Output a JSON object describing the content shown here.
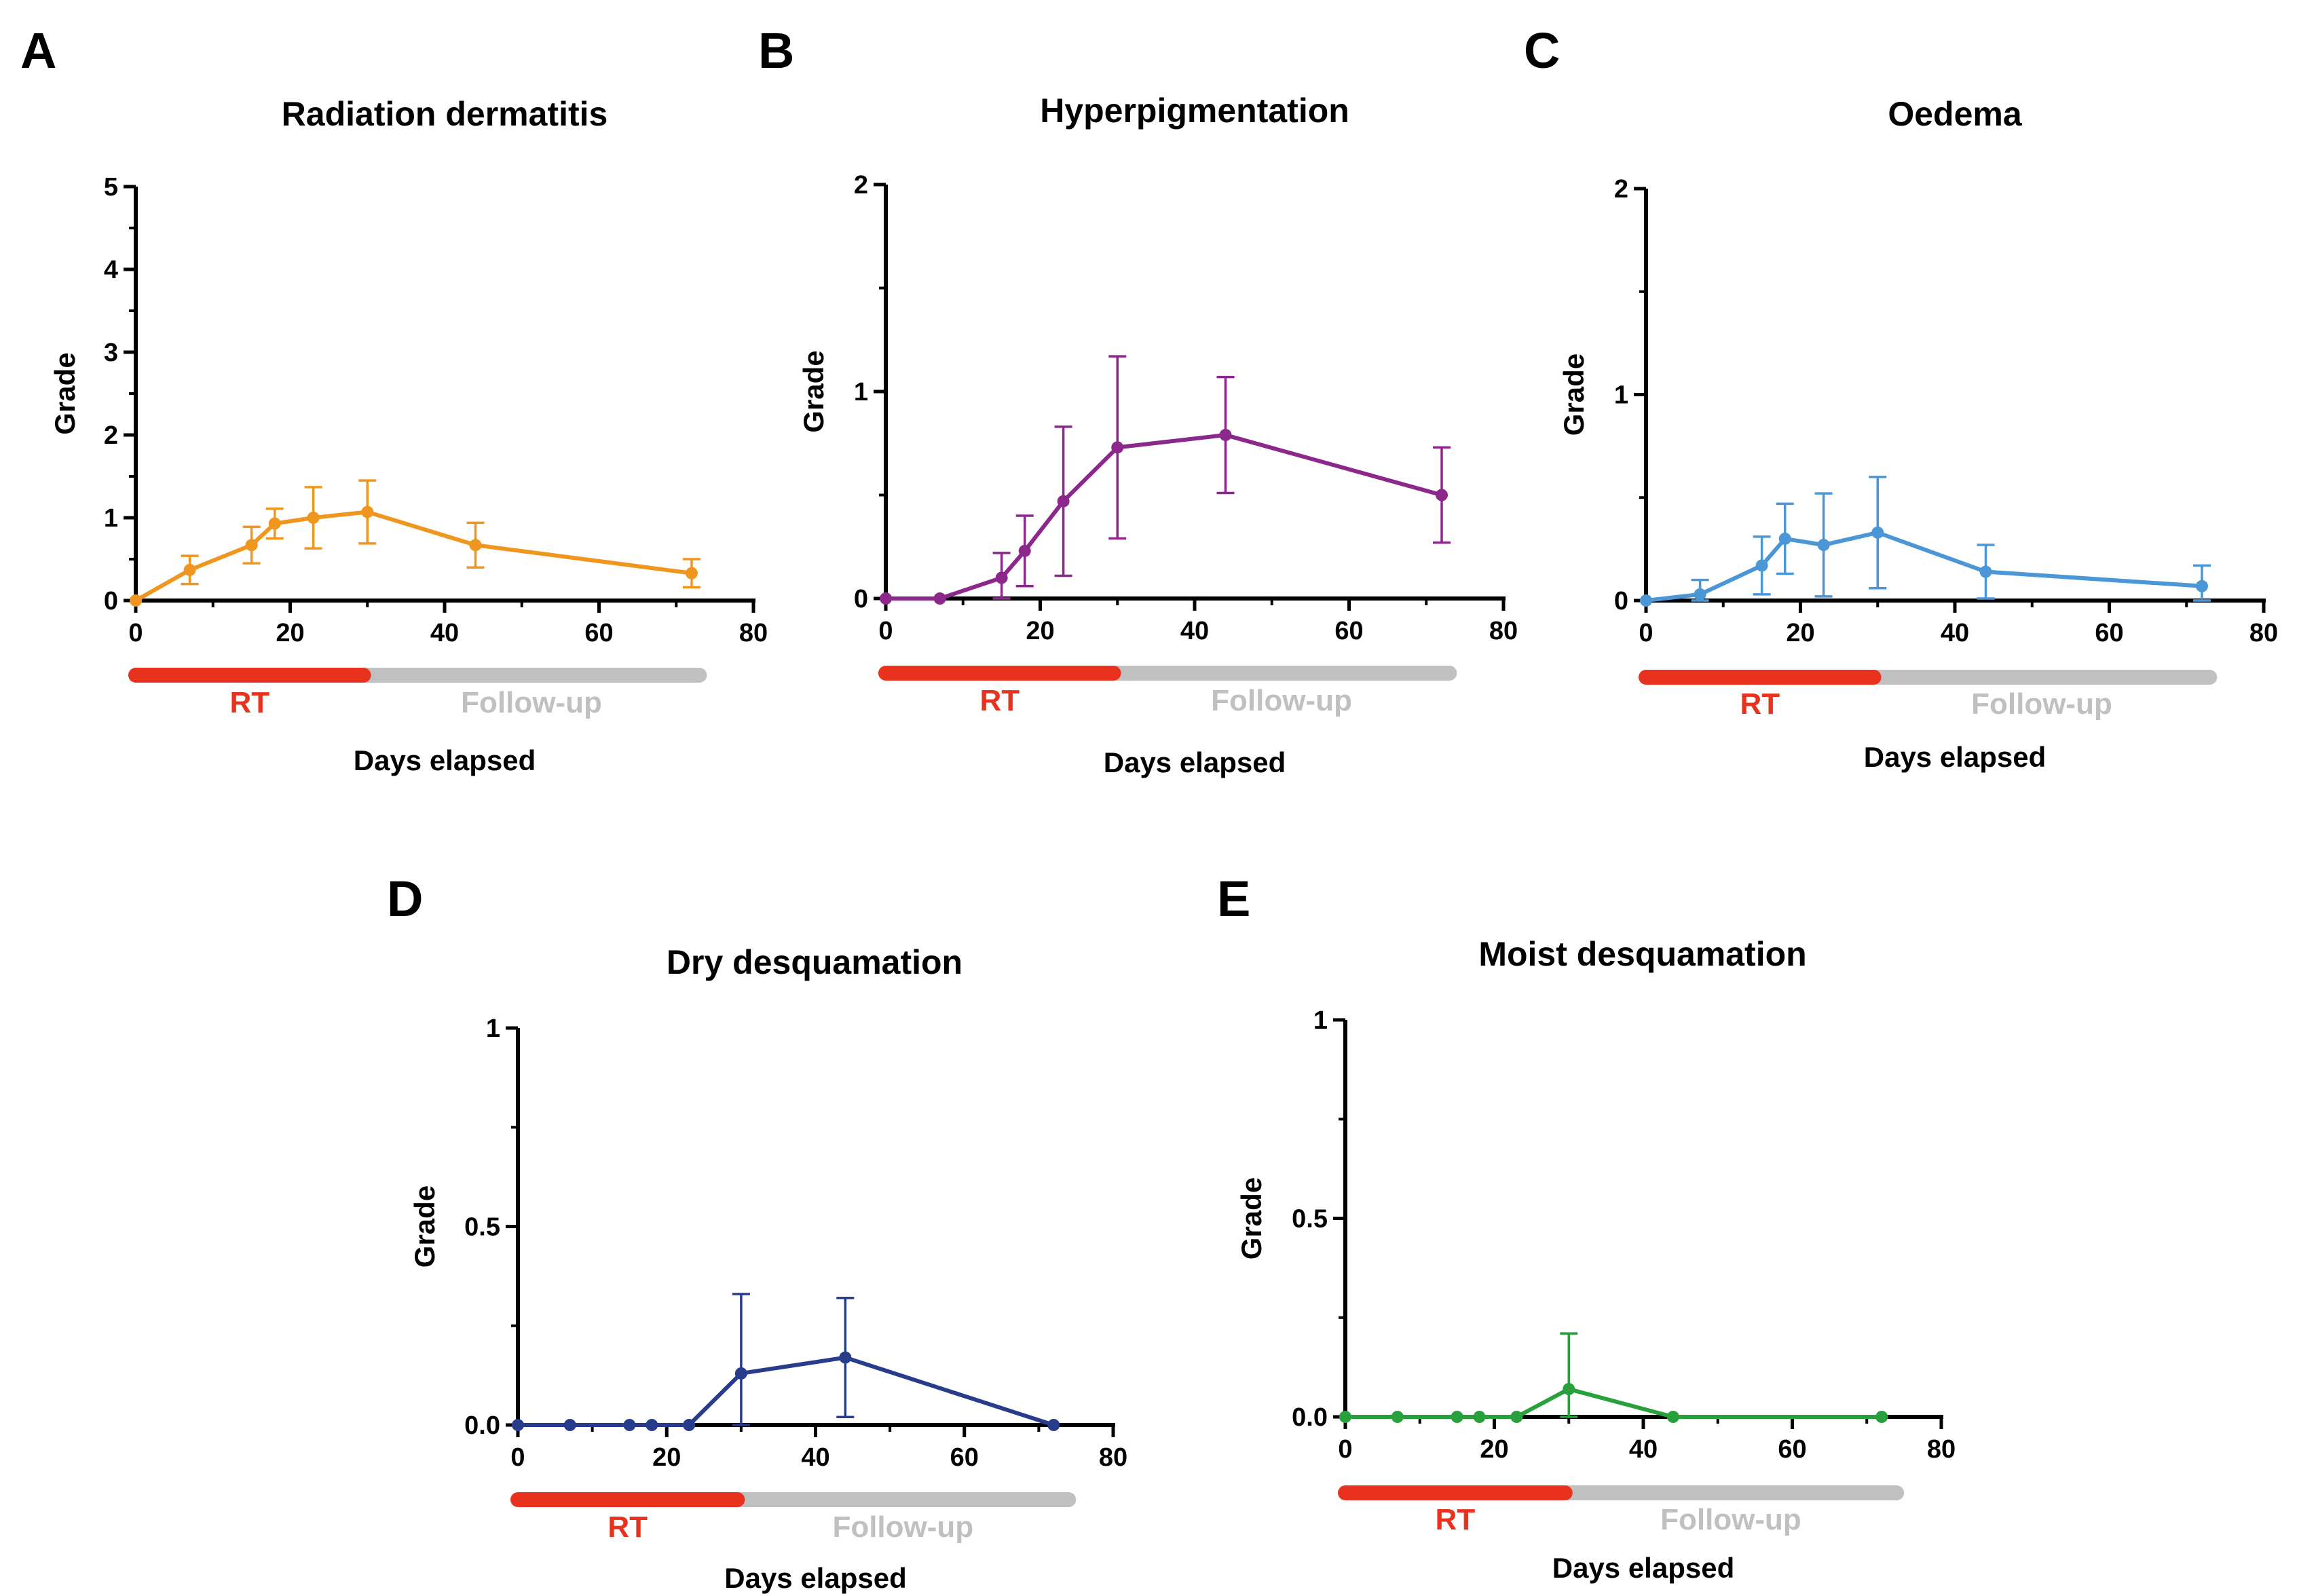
{
  "figure": {
    "colors": {
      "rt_phase": "#e8321e",
      "followup_phase": "#c0c0c0",
      "axis": "#000000"
    }
  },
  "chart_data": [
    {
      "panel": "A",
      "type": "line",
      "title": "Radiation dermatitis",
      "xlabel": "Days elapsed",
      "ylabel": "Grade",
      "xlim": [
        0,
        80
      ],
      "ylim": [
        0,
        5
      ],
      "xticks": [
        "0",
        "20",
        "40",
        "60",
        "80"
      ],
      "xtick_values": [
        0,
        20,
        40,
        60,
        80
      ],
      "yticks": [
        "0",
        "1",
        "2",
        "3",
        "4",
        "5"
      ],
      "ytick_values": [
        0,
        1,
        2,
        3,
        4,
        5
      ],
      "color": "#f0961e",
      "x": [
        0,
        7,
        15,
        18,
        23,
        30,
        44,
        72
      ],
      "y": [
        0.0,
        0.37,
        0.67,
        0.93,
        1.0,
        1.07,
        0.67,
        0.33
      ],
      "err": [
        0.0,
        0.17,
        0.22,
        0.18,
        0.37,
        0.38,
        0.27,
        0.17
      ],
      "phases": [
        {
          "label": "RT",
          "start": 0,
          "end": 29.5
        },
        {
          "label": "Follow-up",
          "start": 29.5,
          "end": 73
        }
      ]
    },
    {
      "panel": "B",
      "type": "line",
      "title": "Hyperpigmentation",
      "xlabel": "Days elapsed",
      "ylabel": "Grade",
      "xlim": [
        0,
        80
      ],
      "ylim": [
        0,
        2
      ],
      "xticks": [
        "0",
        "20",
        "40",
        "60",
        "80"
      ],
      "xtick_values": [
        0,
        20,
        40,
        60,
        80
      ],
      "yticks": [
        "0",
        "1",
        "2"
      ],
      "ytick_values": [
        0,
        1,
        2
      ],
      "color": "#8c288c",
      "x": [
        0,
        7,
        15,
        18,
        23,
        30,
        44,
        72
      ],
      "y": [
        0.0,
        0.0,
        0.1,
        0.23,
        0.47,
        0.73,
        0.79,
        0.5
      ],
      "err": [
        0.0,
        0.0,
        0.12,
        0.17,
        0.36,
        0.44,
        0.28,
        0.23
      ],
      "phases": [
        {
          "label": "RT",
          "start": 0,
          "end": 29.5
        },
        {
          "label": "Follow-up",
          "start": 29.5,
          "end": 73
        }
      ]
    },
    {
      "panel": "C",
      "type": "line",
      "title": "Oedema",
      "xlabel": "Days elapsed",
      "ylabel": "Grade",
      "xlim": [
        0,
        80
      ],
      "ylim": [
        0,
        2
      ],
      "xticks": [
        "0",
        "20",
        "40",
        "60",
        "80"
      ],
      "xtick_values": [
        0,
        20,
        40,
        60,
        80
      ],
      "yticks": [
        "0",
        "1",
        "2"
      ],
      "ytick_values": [
        0,
        1,
        2
      ],
      "color": "#4b96d7",
      "x": [
        0,
        7,
        15,
        18,
        23,
        30,
        44,
        72
      ],
      "y": [
        0.0,
        0.03,
        0.17,
        0.3,
        0.27,
        0.33,
        0.14,
        0.07
      ],
      "err": [
        0.0,
        0.07,
        0.14,
        0.17,
        0.25,
        0.27,
        0.13,
        0.1
      ],
      "phases": [
        {
          "label": "RT",
          "start": 0,
          "end": 29.5
        },
        {
          "label": "Follow-up",
          "start": 29.5,
          "end": 73
        }
      ]
    },
    {
      "panel": "D",
      "type": "line",
      "title": "Dry desquamation",
      "xlabel": "Days elapsed",
      "ylabel": "Grade",
      "xlim": [
        0,
        80
      ],
      "ylim": [
        0,
        1
      ],
      "xticks": [
        "0",
        "20",
        "40",
        "60",
        "80"
      ],
      "xtick_values": [
        0,
        20,
        40,
        60,
        80
      ],
      "yticks": [
        "0.0",
        "0.5",
        "1"
      ],
      "ytick_values": [
        0,
        0.5,
        1
      ],
      "color": "#283c8c",
      "x": [
        0,
        7,
        15,
        18,
        23,
        30,
        44,
        72
      ],
      "y": [
        0.0,
        0.0,
        0.0,
        0.0,
        0.0,
        0.13,
        0.17,
        0.0
      ],
      "err": [
        0.0,
        0.0,
        0.0,
        0.0,
        0.0,
        0.2,
        0.15,
        0.0
      ],
      "phases": [
        {
          "label": "RT",
          "start": 0,
          "end": 29.5
        },
        {
          "label": "Follow-up",
          "start": 29.5,
          "end": 74
        }
      ]
    },
    {
      "panel": "E",
      "type": "line",
      "title": "Moist desquamation",
      "xlabel": "Days elapsed",
      "ylabel": "Grade",
      "xlim": [
        0,
        80
      ],
      "ylim": [
        0,
        1
      ],
      "xticks": [
        "0",
        "20",
        "40",
        "60",
        "80"
      ],
      "xtick_values": [
        0,
        20,
        40,
        60,
        80
      ],
      "yticks": [
        "0.0",
        "0.5",
        "1"
      ],
      "ytick_values": [
        0,
        0.5,
        1
      ],
      "color": "#28a03c",
      "x": [
        0,
        7,
        15,
        18,
        23,
        30,
        44,
        72
      ],
      "y": [
        0.0,
        0.0,
        0.0,
        0.0,
        0.0,
        0.07,
        0.0,
        0.0
      ],
      "err": [
        0.0,
        0.0,
        0.0,
        0.0,
        0.0,
        0.14,
        0.0,
        0.0
      ],
      "phases": [
        {
          "label": "RT",
          "start": 0,
          "end": 29.5
        },
        {
          "label": "Follow-up",
          "start": 29.5,
          "end": 74
        }
      ]
    }
  ]
}
